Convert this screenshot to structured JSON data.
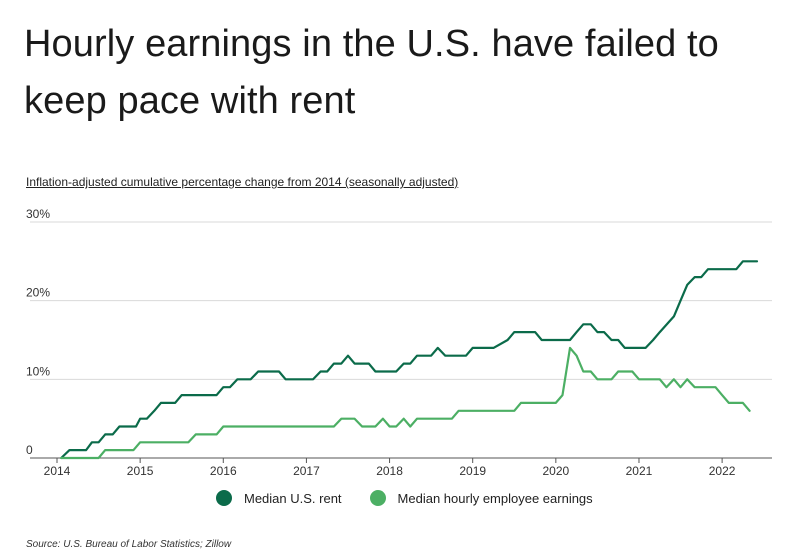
{
  "title": "Hourly earnings in the U.S. have failed to keep pace with rent",
  "subtitle": "Inflation-adjusted cumulative percentage change from 2014 (seasonally adjusted)",
  "source": "Source:  U.S. Bureau of Labor Statistics; Zillow",
  "chart_data": {
    "type": "line",
    "title": "Hourly earnings in the U.S. have failed to keep pace with rent",
    "subtitle": "Inflation-adjusted cumulative percentage change from 2014 (seasonally adjusted)",
    "xlabel": "",
    "ylabel": "",
    "xlim": [
      2014,
      2022.6
    ],
    "ylim": [
      0,
      30
    ],
    "x_ticks": [
      "2014",
      "2015",
      "2016",
      "2017",
      "2018",
      "2019",
      "2020",
      "2021",
      "2022"
    ],
    "y_ticks": [
      "0",
      "10%",
      "20%",
      "30%"
    ],
    "grid": "horizontal",
    "legend": "bottom",
    "series": [
      {
        "name": "Median U.S. rent",
        "color": "#0b6b4a",
        "points": [
          [
            2014.05,
            0
          ],
          [
            2014.15,
            1
          ],
          [
            2014.35,
            1
          ],
          [
            2014.42,
            2
          ],
          [
            2014.5,
            2
          ],
          [
            2014.58,
            3
          ],
          [
            2014.67,
            3
          ],
          [
            2014.75,
            4
          ],
          [
            2014.95,
            4
          ],
          [
            2015.0,
            5
          ],
          [
            2015.08,
            5
          ],
          [
            2015.17,
            6
          ],
          [
            2015.25,
            7
          ],
          [
            2015.42,
            7
          ],
          [
            2015.5,
            8
          ],
          [
            2015.92,
            8
          ],
          [
            2016.0,
            9
          ],
          [
            2016.08,
            9
          ],
          [
            2016.17,
            10
          ],
          [
            2016.33,
            10
          ],
          [
            2016.42,
            11
          ],
          [
            2016.67,
            11
          ],
          [
            2016.75,
            10
          ],
          [
            2017.08,
            10
          ],
          [
            2017.17,
            11
          ],
          [
            2017.25,
            11
          ],
          [
            2017.33,
            12
          ],
          [
            2017.42,
            12
          ],
          [
            2017.5,
            13
          ],
          [
            2017.58,
            12
          ],
          [
            2017.75,
            12
          ],
          [
            2017.83,
            11
          ],
          [
            2018.08,
            11
          ],
          [
            2018.17,
            12
          ],
          [
            2018.25,
            12
          ],
          [
            2018.33,
            13
          ],
          [
            2018.5,
            13
          ],
          [
            2018.58,
            14
          ],
          [
            2018.67,
            13
          ],
          [
            2018.92,
            13
          ],
          [
            2019.0,
            14
          ],
          [
            2019.25,
            14
          ],
          [
            2019.42,
            15
          ],
          [
            2019.5,
            16
          ],
          [
            2019.75,
            16
          ],
          [
            2019.83,
            15
          ],
          [
            2020.17,
            15
          ],
          [
            2020.25,
            16
          ],
          [
            2020.33,
            17
          ],
          [
            2020.42,
            17
          ],
          [
            2020.5,
            16
          ],
          [
            2020.58,
            16
          ],
          [
            2020.67,
            15
          ],
          [
            2020.75,
            15
          ],
          [
            2020.83,
            14
          ],
          [
            2021.08,
            14
          ],
          [
            2021.17,
            15
          ],
          [
            2021.25,
            16
          ],
          [
            2021.42,
            18
          ],
          [
            2021.5,
            20
          ],
          [
            2021.58,
            22
          ],
          [
            2021.67,
            23
          ],
          [
            2021.75,
            23
          ],
          [
            2021.83,
            24
          ],
          [
            2022.17,
            24
          ],
          [
            2022.25,
            25
          ],
          [
            2022.42,
            25
          ]
        ]
      },
      {
        "name": "Median hourly employee earnings",
        "color": "#4caf64",
        "points": [
          [
            2014.05,
            0
          ],
          [
            2014.5,
            0
          ],
          [
            2014.58,
            1
          ],
          [
            2014.92,
            1
          ],
          [
            2015.0,
            2
          ],
          [
            2015.58,
            2
          ],
          [
            2015.67,
            3
          ],
          [
            2015.92,
            3
          ],
          [
            2016.0,
            4
          ],
          [
            2017.33,
            4
          ],
          [
            2017.42,
            5
          ],
          [
            2017.58,
            5
          ],
          [
            2017.67,
            4
          ],
          [
            2017.83,
            4
          ],
          [
            2017.92,
            5
          ],
          [
            2018.0,
            4
          ],
          [
            2018.08,
            4
          ],
          [
            2018.17,
            5
          ],
          [
            2018.25,
            4
          ],
          [
            2018.33,
            5
          ],
          [
            2018.75,
            5
          ],
          [
            2018.83,
            6
          ],
          [
            2019.5,
            6
          ],
          [
            2019.58,
            7
          ],
          [
            2020.0,
            7
          ],
          [
            2020.08,
            8
          ],
          [
            2020.17,
            14
          ],
          [
            2020.25,
            13
          ],
          [
            2020.33,
            11
          ],
          [
            2020.42,
            11
          ],
          [
            2020.5,
            10
          ],
          [
            2020.67,
            10
          ],
          [
            2020.75,
            11
          ],
          [
            2020.92,
            11
          ],
          [
            2021.0,
            10
          ],
          [
            2021.25,
            10
          ],
          [
            2021.33,
            9
          ],
          [
            2021.42,
            10
          ],
          [
            2021.5,
            9
          ],
          [
            2021.58,
            10
          ],
          [
            2021.67,
            9
          ],
          [
            2021.92,
            9
          ],
          [
            2022.0,
            8
          ],
          [
            2022.08,
            7
          ],
          [
            2022.25,
            7
          ],
          [
            2022.33,
            6
          ]
        ]
      }
    ]
  }
}
